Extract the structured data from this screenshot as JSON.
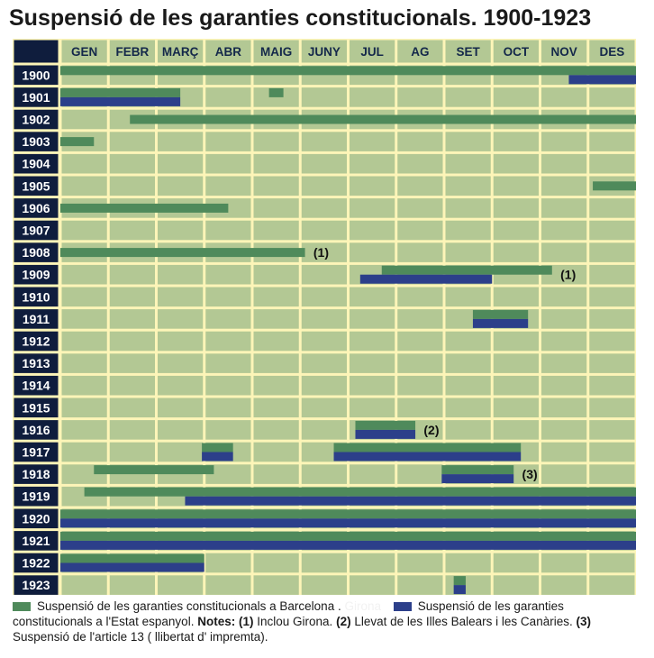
{
  "title": "Suspensió de les garanties constitucionals. 1900-1923",
  "chart_data": {
    "type": "gantt",
    "months": [
      "GEN",
      "FEBR",
      "MARÇ",
      "ABR",
      "MAIG",
      "JUNY",
      "JUL",
      "AG",
      "SET",
      "OCT",
      "NOV",
      "DES"
    ],
    "years": [
      "1900",
      "1901",
      "1902",
      "1903",
      "1904",
      "1905",
      "1906",
      "1907",
      "1908",
      "1909",
      "1910",
      "1911",
      "1912",
      "1913",
      "1914",
      "1915",
      "1916",
      "1917",
      "1918",
      "1919",
      "1920",
      "1921",
      "1922",
      "1923"
    ],
    "series": [
      {
        "name": "Suspensió de les garanties constitucionals a Barcelona",
        "color": "#4f8a5b",
        "intervals": [
          {
            "year": "1900",
            "start": 0,
            "end": 12
          },
          {
            "year": "1901",
            "start": 0,
            "end": 2.5
          },
          {
            "year": "1901",
            "start": 4.35,
            "end": 4.65
          },
          {
            "year": "1902",
            "start": 1.45,
            "end": 12
          },
          {
            "year": "1903",
            "start": 0,
            "end": 0.7
          },
          {
            "year": "1905",
            "start": 11.1,
            "end": 12
          },
          {
            "year": "1906",
            "start": 0,
            "end": 3.5
          },
          {
            "year": "1908",
            "start": 0,
            "end": 5.1
          },
          {
            "year": "1909",
            "start": 6.7,
            "end": 10.25
          },
          {
            "year": "1911",
            "start": 8.6,
            "end": 9.75
          },
          {
            "year": "1916",
            "start": 6.15,
            "end": 7.4
          },
          {
            "year": "1917",
            "start": 2.95,
            "end": 3.6
          },
          {
            "year": "1917",
            "start": 5.7,
            "end": 9.6
          },
          {
            "year": "1918",
            "start": 0.7,
            "end": 3.2
          },
          {
            "year": "1918",
            "start": 7.95,
            "end": 9.45
          },
          {
            "year": "1919",
            "start": 0.5,
            "end": 12
          },
          {
            "year": "1920",
            "start": 0,
            "end": 12
          },
          {
            "year": "1921",
            "start": 0,
            "end": 12
          },
          {
            "year": "1922",
            "start": 0,
            "end": 3
          },
          {
            "year": "1923",
            "start": 8.2,
            "end": 8.45
          }
        ]
      },
      {
        "name": "Suspensió de les garanties constitucionals a l'Estat espanyol",
        "color": "#2c3f8a",
        "intervals": [
          {
            "year": "1900",
            "start": 10.6,
            "end": 12
          },
          {
            "year": "1901",
            "start": 0,
            "end": 2.5
          },
          {
            "year": "1909",
            "start": 6.25,
            "end": 9
          },
          {
            "year": "1911",
            "start": 8.6,
            "end": 9.75
          },
          {
            "year": "1916",
            "start": 6.15,
            "end": 7.4
          },
          {
            "year": "1917",
            "start": 2.95,
            "end": 3.6
          },
          {
            "year": "1917",
            "start": 5.7,
            "end": 9.6
          },
          {
            "year": "1918",
            "start": 7.95,
            "end": 9.45
          },
          {
            "year": "1919",
            "start": 2.6,
            "end": 12
          },
          {
            "year": "1920",
            "start": 0,
            "end": 12
          },
          {
            "year": "1921",
            "start": 0,
            "end": 12
          },
          {
            "year": "1922",
            "start": 0,
            "end": 3
          },
          {
            "year": "1923",
            "start": 8.2,
            "end": 8.45
          }
        ]
      }
    ],
    "annotations": [
      {
        "year": "1908",
        "month": 5.2,
        "text": "(1)"
      },
      {
        "year": "1909",
        "month": 10.35,
        "text": "(1)"
      },
      {
        "year": "1916",
        "month": 7.5,
        "text": "(2)"
      },
      {
        "year": "1918",
        "month": 9.55,
        "text": "(3)"
      }
    ]
  },
  "legend": {
    "barcelona": "Suspensió de les garanties constitucionals a Barcelona .",
    "hidden": "Girona",
    "espanya": "Suspensió de les garanties constitucionals a l'Estat espanyol.",
    "notes_label": "Notes:",
    "note1_num": "(1)",
    "note1_text": "Inclou Girona.",
    "note2_num": "(2)",
    "note2_text": "Llevat de les Illes Balears i les Canàries.",
    "note3_num": "(3)",
    "note3_text": "Suspensió de l'article 13 ( llibertat d' impremta)."
  }
}
